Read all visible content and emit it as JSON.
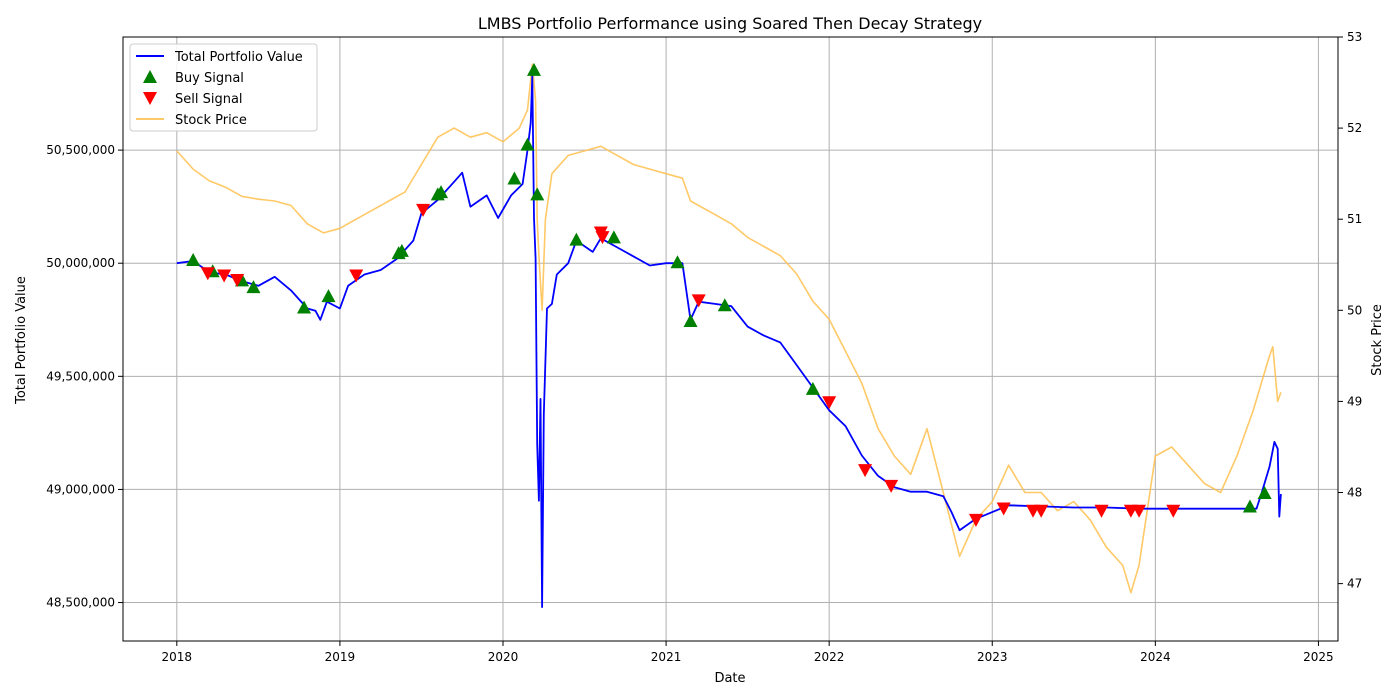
{
  "chart_data": {
    "type": "line",
    "title": "LMBS Portfolio Performance using Soared Then Decay Strategy",
    "xlabel": "Date",
    "ylabel_left": "Total Portfolio Value",
    "ylabel_right": "Stock Price",
    "x_ticks": [
      "2018",
      "2019",
      "2020",
      "2021",
      "2022",
      "2023",
      "2024",
      "2025"
    ],
    "y_left_ticks": [
      "48,500,000",
      "49,000,000",
      "49,500,000",
      "50,000,000",
      "50,500,000"
    ],
    "y_left_tick_values": [
      48500000,
      49000000,
      49500000,
      50000000,
      50500000
    ],
    "y_right_ticks": [
      "47",
      "48",
      "49",
      "50",
      "51",
      "52",
      "53"
    ],
    "y_right_tick_values": [
      47,
      48,
      49,
      50,
      51,
      52,
      53
    ],
    "xlim": [
      2017.67,
      2025.12
    ],
    "ylim_left": [
      48330000,
      51000000
    ],
    "ylim_right": [
      46.37,
      53.0
    ],
    "grid": true,
    "legend_position": "top-left",
    "legend": [
      "Total Portfolio Value",
      "Buy Signal",
      "Sell Signal",
      "Stock Price"
    ],
    "colors": {
      "portfolio": "#0000ff",
      "buy": "#008000",
      "sell": "#ff0000",
      "stock": "#ffc04d",
      "grid": "#b0b0b0"
    },
    "series": [
      {
        "name": "Total Portfolio Value",
        "axis": "left",
        "points": [
          [
            2018.0,
            50000000
          ],
          [
            2018.1,
            50010000
          ],
          [
            2018.2,
            49960000
          ],
          [
            2018.3,
            49950000
          ],
          [
            2018.4,
            49920000
          ],
          [
            2018.5,
            49900000
          ],
          [
            2018.6,
            49940000
          ],
          [
            2018.7,
            49880000
          ],
          [
            2018.8,
            49800000
          ],
          [
            2018.85,
            49790000
          ],
          [
            2018.88,
            49750000
          ],
          [
            2018.92,
            49830000
          ],
          [
            2019.0,
            49800000
          ],
          [
            2019.05,
            49900000
          ],
          [
            2019.15,
            49950000
          ],
          [
            2019.25,
            49970000
          ],
          [
            2019.35,
            50020000
          ],
          [
            2019.45,
            50100000
          ],
          [
            2019.5,
            50220000
          ],
          [
            2019.6,
            50280000
          ],
          [
            2019.7,
            50360000
          ],
          [
            2019.75,
            50400000
          ],
          [
            2019.8,
            50250000
          ],
          [
            2019.9,
            50300000
          ],
          [
            2019.97,
            50200000
          ],
          [
            2020.05,
            50300000
          ],
          [
            2020.12,
            50350000
          ],
          [
            2020.15,
            50500000
          ],
          [
            2020.17,
            50620000
          ],
          [
            2020.18,
            50830000
          ],
          [
            2020.19,
            50200000
          ],
          [
            2020.2,
            50020000
          ],
          [
            2020.21,
            49200000
          ],
          [
            2020.22,
            48950000
          ],
          [
            2020.23,
            49400000
          ],
          [
            2020.24,
            48480000
          ],
          [
            2020.25,
            49330000
          ],
          [
            2020.27,
            49800000
          ],
          [
            2020.3,
            49820000
          ],
          [
            2020.33,
            49950000
          ],
          [
            2020.4,
            50000000
          ],
          [
            2020.45,
            50100000
          ],
          [
            2020.55,
            50050000
          ],
          [
            2020.6,
            50110000
          ],
          [
            2020.7,
            50070000
          ],
          [
            2020.8,
            50030000
          ],
          [
            2020.9,
            49990000
          ],
          [
            2021.0,
            50000000
          ],
          [
            2021.1,
            50000000
          ],
          [
            2021.15,
            49750000
          ],
          [
            2021.2,
            49830000
          ],
          [
            2021.3,
            49820000
          ],
          [
            2021.4,
            49810000
          ],
          [
            2021.5,
            49720000
          ],
          [
            2021.6,
            49680000
          ],
          [
            2021.7,
            49650000
          ],
          [
            2021.8,
            49550000
          ],
          [
            2021.9,
            49450000
          ],
          [
            2022.0,
            49350000
          ],
          [
            2022.1,
            49280000
          ],
          [
            2022.2,
            49150000
          ],
          [
            2022.3,
            49060000
          ],
          [
            2022.4,
            49010000
          ],
          [
            2022.5,
            48990000
          ],
          [
            2022.6,
            48990000
          ],
          [
            2022.7,
            48970000
          ],
          [
            2022.75,
            48900000
          ],
          [
            2022.8,
            48820000
          ],
          [
            2022.9,
            48870000
          ],
          [
            2023.0,
            48900000
          ],
          [
            2023.1,
            48930000
          ],
          [
            2023.3,
            48925000
          ],
          [
            2023.5,
            48920000
          ],
          [
            2023.7,
            48920000
          ],
          [
            2023.9,
            48915000
          ],
          [
            2024.1,
            48915000
          ],
          [
            2024.3,
            48915000
          ],
          [
            2024.5,
            48915000
          ],
          [
            2024.62,
            48915000
          ],
          [
            2024.65,
            48980000
          ],
          [
            2024.7,
            49100000
          ],
          [
            2024.73,
            49210000
          ],
          [
            2024.75,
            49180000
          ],
          [
            2024.76,
            48880000
          ],
          [
            2024.77,
            48980000
          ]
        ]
      },
      {
        "name": "Stock Price",
        "axis": "right",
        "points": [
          [
            2018.0,
            51.75
          ],
          [
            2018.1,
            51.55
          ],
          [
            2018.2,
            51.42
          ],
          [
            2018.3,
            51.35
          ],
          [
            2018.4,
            51.25
          ],
          [
            2018.5,
            51.22
          ],
          [
            2018.6,
            51.2
          ],
          [
            2018.7,
            51.15
          ],
          [
            2018.8,
            50.95
          ],
          [
            2018.9,
            50.85
          ],
          [
            2019.0,
            50.9
          ],
          [
            2019.1,
            51.0
          ],
          [
            2019.2,
            51.1
          ],
          [
            2019.3,
            51.2
          ],
          [
            2019.4,
            51.3
          ],
          [
            2019.5,
            51.6
          ],
          [
            2019.6,
            51.9
          ],
          [
            2019.7,
            52.0
          ],
          [
            2019.8,
            51.9
          ],
          [
            2019.9,
            51.95
          ],
          [
            2020.0,
            51.85
          ],
          [
            2020.1,
            52.0
          ],
          [
            2020.15,
            52.2
          ],
          [
            2020.18,
            52.7
          ],
          [
            2020.2,
            52.3
          ],
          [
            2020.21,
            51.0
          ],
          [
            2020.22,
            50.6
          ],
          [
            2020.24,
            50.0
          ],
          [
            2020.26,
            51.0
          ],
          [
            2020.3,
            51.5
          ],
          [
            2020.4,
            51.7
          ],
          [
            2020.5,
            51.75
          ],
          [
            2020.6,
            51.8
          ],
          [
            2020.7,
            51.7
          ],
          [
            2020.8,
            51.6
          ],
          [
            2020.9,
            51.55
          ],
          [
            2021.0,
            51.5
          ],
          [
            2021.1,
            51.45
          ],
          [
            2021.15,
            51.2
          ],
          [
            2021.3,
            51.05
          ],
          [
            2021.4,
            50.95
          ],
          [
            2021.5,
            50.8
          ],
          [
            2021.6,
            50.7
          ],
          [
            2021.7,
            50.6
          ],
          [
            2021.8,
            50.4
          ],
          [
            2021.9,
            50.1
          ],
          [
            2022.0,
            49.9
          ],
          [
            2022.1,
            49.55
          ],
          [
            2022.2,
            49.2
          ],
          [
            2022.3,
            48.7
          ],
          [
            2022.4,
            48.4
          ],
          [
            2022.5,
            48.2
          ],
          [
            2022.6,
            48.7
          ],
          [
            2022.7,
            48.0
          ],
          [
            2022.8,
            47.3
          ],
          [
            2022.9,
            47.7
          ],
          [
            2023.0,
            47.9
          ],
          [
            2023.1,
            48.3
          ],
          [
            2023.2,
            48.0
          ],
          [
            2023.3,
            48.0
          ],
          [
            2023.4,
            47.8
          ],
          [
            2023.5,
            47.9
          ],
          [
            2023.6,
            47.7
          ],
          [
            2023.7,
            47.4
          ],
          [
            2023.8,
            47.2
          ],
          [
            2023.85,
            46.9
          ],
          [
            2023.9,
            47.2
          ],
          [
            2023.95,
            47.8
          ],
          [
            2024.0,
            48.4
          ],
          [
            2024.1,
            48.5
          ],
          [
            2024.2,
            48.3
          ],
          [
            2024.3,
            48.1
          ],
          [
            2024.4,
            48.0
          ],
          [
            2024.5,
            48.4
          ],
          [
            2024.6,
            48.9
          ],
          [
            2024.65,
            49.2
          ],
          [
            2024.7,
            49.5
          ],
          [
            2024.72,
            49.6
          ],
          [
            2024.75,
            49.0
          ],
          [
            2024.77,
            49.1
          ]
        ]
      }
    ],
    "buy_signals": [
      [
        2018.1,
        50010000
      ],
      [
        2018.22,
        49960000
      ],
      [
        2018.4,
        49920000
      ],
      [
        2018.47,
        49890000
      ],
      [
        2018.78,
        49800000
      ],
      [
        2018.93,
        49850000
      ],
      [
        2019.36,
        50040000
      ],
      [
        2019.38,
        50050000
      ],
      [
        2019.6,
        50300000
      ],
      [
        2019.62,
        50310000
      ],
      [
        2020.07,
        50370000
      ],
      [
        2020.15,
        50520000
      ],
      [
        2020.19,
        50850000
      ],
      [
        2020.21,
        50300000
      ],
      [
        2020.45,
        50100000
      ],
      [
        2020.68,
        50110000
      ],
      [
        2021.07,
        50000000
      ],
      [
        2021.15,
        49740000
      ],
      [
        2021.36,
        49810000
      ],
      [
        2021.9,
        49440000
      ],
      [
        2024.58,
        48920000
      ],
      [
        2024.67,
        48980000
      ]
    ],
    "sell_signals": [
      [
        2018.19,
        49960000
      ],
      [
        2018.29,
        49950000
      ],
      [
        2018.37,
        49930000
      ],
      [
        2019.1,
        49950000
      ],
      [
        2019.51,
        50240000
      ],
      [
        2020.6,
        50140000
      ],
      [
        2020.61,
        50120000
      ],
      [
        2021.2,
        49840000
      ],
      [
        2022.0,
        49390000
      ],
      [
        2022.22,
        49090000
      ],
      [
        2022.38,
        49020000
      ],
      [
        2022.9,
        48870000
      ],
      [
        2023.07,
        48920000
      ],
      [
        2023.25,
        48910000
      ],
      [
        2023.3,
        48910000
      ],
      [
        2023.67,
        48910000
      ],
      [
        2023.85,
        48910000
      ],
      [
        2023.9,
        48910000
      ],
      [
        2024.11,
        48910000
      ]
    ]
  }
}
